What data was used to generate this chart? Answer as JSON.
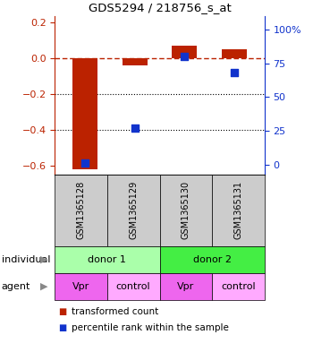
{
  "title": "GDS5294 / 218756_s_at",
  "samples": [
    "GSM1365128",
    "GSM1365129",
    "GSM1365130",
    "GSM1365131"
  ],
  "red_values": [
    -0.62,
    -0.04,
    0.07,
    0.05
  ],
  "blue_values": [
    1.0,
    27.0,
    80.0,
    68.0
  ],
  "ylim_left": [
    -0.65,
    0.235
  ],
  "ylim_right": [
    -7.15,
    110
  ],
  "yticks_left": [
    0.2,
    0.0,
    -0.2,
    -0.4,
    -0.6
  ],
  "yticks_right": [
    100,
    75,
    50,
    25,
    0
  ],
  "red_color": "#bb2200",
  "blue_color": "#1133cc",
  "bar_width": 0.5,
  "blue_marker_size": 28,
  "individual_labels": [
    "donor 1",
    "donor 2"
  ],
  "individual_colors_light": "#aaffaa",
  "individual_colors_dark": "#44ee44",
  "agent_colors_vpr": "#ee66ee",
  "agent_colors_control": "#ffaaff",
  "agent_labels": [
    "Vpr",
    "control",
    "Vpr",
    "control"
  ],
  "gsm_bg_color": "#cccccc",
  "legend_red_label": "transformed count",
  "legend_blue_label": "percentile rank within the sample",
  "individual_row_label": "individual",
  "agent_row_label": "agent"
}
